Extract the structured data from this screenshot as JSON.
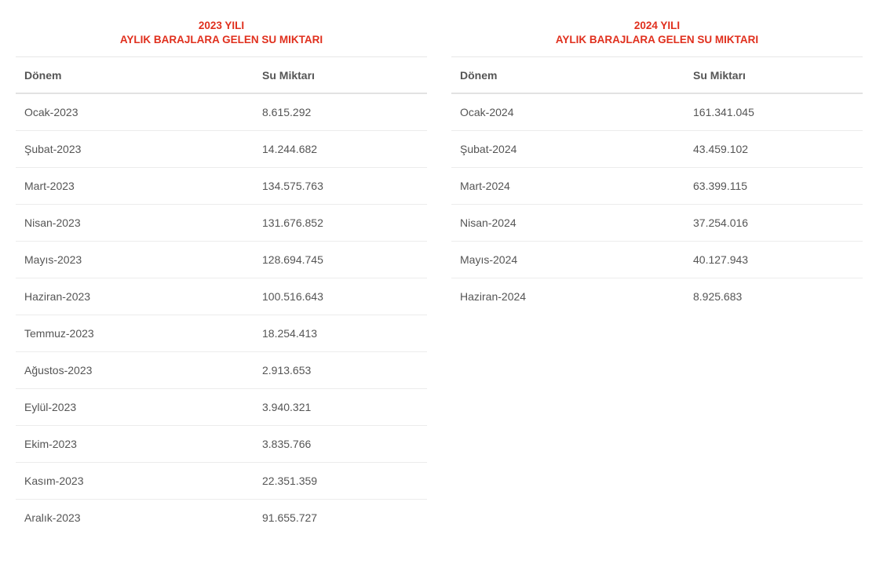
{
  "tables": [
    {
      "title_line1": "2023 YILI",
      "title_line2": "AYLIK BARAJLARA GELEN SU MIKTARI",
      "headers": {
        "period": "Dönem",
        "amount": "Su Miktarı"
      },
      "rows": [
        {
          "period": "Ocak-2023",
          "amount": "8.615.292"
        },
        {
          "period": "Şubat-2023",
          "amount": "14.244.682"
        },
        {
          "period": "Mart-2023",
          "amount": "134.575.763"
        },
        {
          "period": "Nisan-2023",
          "amount": "131.676.852"
        },
        {
          "period": "Mayıs-2023",
          "amount": "128.694.745"
        },
        {
          "period": "Haziran-2023",
          "amount": "100.516.643"
        },
        {
          "period": "Temmuz-2023",
          "amount": "18.254.413"
        },
        {
          "period": "Ağustos-2023",
          "amount": "2.913.653"
        },
        {
          "period": "Eylül-2023",
          "amount": "3.940.321"
        },
        {
          "period": "Ekim-2023",
          "amount": "3.835.766"
        },
        {
          "period": "Kasım-2023",
          "amount": "22.351.359"
        },
        {
          "period": "Aralık-2023",
          "amount": "91.655.727"
        }
      ]
    },
    {
      "title_line1": "2024 YILI",
      "title_line2": "AYLIK BARAJLARA GELEN SU MIKTARI",
      "headers": {
        "period": "Dönem",
        "amount": "Su Miktarı"
      },
      "rows": [
        {
          "period": "Ocak-2024",
          "amount": "161.341.045"
        },
        {
          "period": "Şubat-2024",
          "amount": "43.459.102"
        },
        {
          "period": "Mart-2024",
          "amount": "63.399.115"
        },
        {
          "period": "Nisan-2024",
          "amount": "37.254.016"
        },
        {
          "period": "Mayıs-2024",
          "amount": "40.127.943"
        },
        {
          "period": "Haziran-2024",
          "amount": "8.925.683"
        }
      ]
    }
  ],
  "colors": {
    "title": "#e0301e",
    "text": "#555555",
    "divider": "#ececec"
  }
}
